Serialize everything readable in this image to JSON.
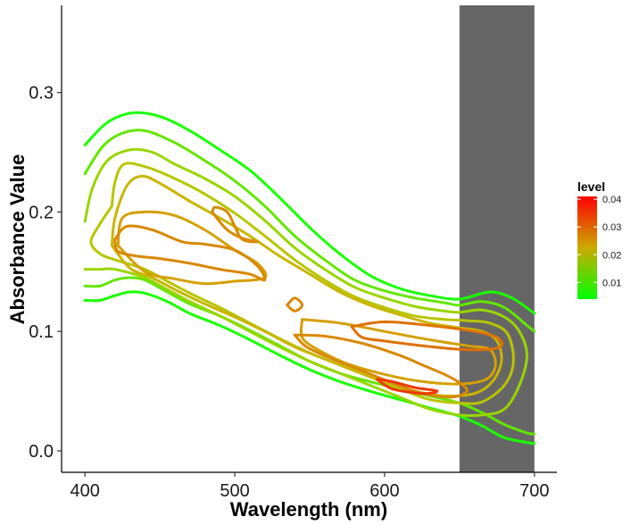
{
  "chart_data": {
    "type": "contour",
    "title": "",
    "xlabel": "Wavelength (nm)",
    "ylabel": "Absorbance Value",
    "xlim": [
      385,
      715
    ],
    "ylim": [
      -0.018,
      0.373
    ],
    "x_ticks": [
      400,
      500,
      600,
      700
    ],
    "x_tick_labels": [
      "400",
      "500",
      "600",
      "700"
    ],
    "y_ticks": [
      0.0,
      0.1,
      0.2,
      0.3
    ],
    "y_tick_labels": [
      "0.0",
      "0.1",
      "0.2",
      "0.3"
    ],
    "grid": false,
    "shaded_band": {
      "x_from": 650,
      "x_to": 700,
      "color": "#666666"
    },
    "legend": {
      "title": "level",
      "position": "right",
      "labels": [
        "0.04",
        "0.03",
        "0.02",
        "0.01"
      ],
      "values": [
        0.04,
        0.03,
        0.02,
        0.01
      ],
      "color_min": "#00ff00",
      "color_mid": "#ccaa00",
      "color_max": "#ff0000"
    },
    "contours": [
      {
        "level": 0.004,
        "color": "#1aff00",
        "points": [
          [
            400,
            0.256
          ],
          [
            415,
            0.275
          ],
          [
            432,
            0.283
          ],
          [
            450,
            0.28
          ],
          [
            470,
            0.268
          ],
          [
            490,
            0.252
          ],
          [
            510,
            0.235
          ],
          [
            530,
            0.212
          ],
          [
            550,
            0.187
          ],
          [
            570,
            0.165
          ],
          [
            590,
            0.147
          ],
          [
            610,
            0.136
          ],
          [
            630,
            0.13
          ],
          [
            650,
            0.127
          ],
          [
            670,
            0.133
          ],
          [
            685,
            0.128
          ],
          [
            700,
            0.115
          ]
        ]
      },
      {
        "level": 0.004,
        "color": "#1aff00",
        "points": [
          [
            400,
            0.126
          ],
          [
            410,
            0.126
          ],
          [
            420,
            0.13
          ],
          [
            430,
            0.133
          ],
          [
            440,
            0.132
          ],
          [
            455,
            0.125
          ],
          [
            470,
            0.115
          ],
          [
            490,
            0.105
          ],
          [
            510,
            0.093
          ],
          [
            530,
            0.08
          ],
          [
            550,
            0.068
          ],
          [
            570,
            0.058
          ],
          [
            590,
            0.05
          ],
          [
            610,
            0.043
          ],
          [
            630,
            0.036
          ],
          [
            650,
            0.029
          ],
          [
            665,
            0.021
          ],
          [
            680,
            0.011
          ],
          [
            700,
            0.006
          ]
        ]
      },
      {
        "level": 0.007,
        "color": "#63e600",
        "points": [
          [
            400,
            0.232
          ],
          [
            412,
            0.255
          ],
          [
            425,
            0.266
          ],
          [
            440,
            0.268
          ],
          [
            460,
            0.258
          ],
          [
            480,
            0.243
          ],
          [
            500,
            0.226
          ],
          [
            520,
            0.205
          ],
          [
            540,
            0.18
          ],
          [
            560,
            0.16
          ],
          [
            580,
            0.143
          ],
          [
            600,
            0.134
          ],
          [
            620,
            0.128
          ],
          [
            640,
            0.124
          ],
          [
            650,
            0.122
          ],
          [
            665,
            0.125
          ],
          [
            680,
            0.12
          ],
          [
            695,
            0.105
          ],
          [
            700,
            0.1
          ]
        ]
      },
      {
        "level": 0.007,
        "color": "#63e600",
        "points": [
          [
            400,
            0.138
          ],
          [
            410,
            0.138
          ],
          [
            420,
            0.143
          ],
          [
            430,
            0.145
          ],
          [
            440,
            0.143
          ],
          [
            455,
            0.133
          ],
          [
            470,
            0.123
          ],
          [
            490,
            0.113
          ],
          [
            510,
            0.101
          ],
          [
            530,
            0.088
          ],
          [
            550,
            0.075
          ],
          [
            570,
            0.065
          ],
          [
            590,
            0.058
          ],
          [
            610,
            0.052
          ],
          [
            630,
            0.046
          ],
          [
            650,
            0.04
          ],
          [
            665,
            0.032
          ],
          [
            680,
            0.022
          ],
          [
            695,
            0.015
          ],
          [
            700,
            0.014
          ]
        ]
      },
      {
        "level": 0.01,
        "color": "#99d500",
        "points": [
          [
            400,
            0.192
          ],
          [
            405,
            0.22
          ],
          [
            415,
            0.243
          ],
          [
            430,
            0.252
          ],
          [
            445,
            0.25
          ],
          [
            460,
            0.24
          ],
          [
            480,
            0.228
          ],
          [
            500,
            0.213
          ],
          [
            520,
            0.193
          ],
          [
            540,
            0.17
          ],
          [
            560,
            0.152
          ],
          [
            580,
            0.137
          ],
          [
            600,
            0.128
          ],
          [
            620,
            0.121
          ],
          [
            640,
            0.117
          ],
          [
            650,
            0.116
          ],
          [
            665,
            0.118
          ],
          [
            680,
            0.112
          ],
          [
            690,
            0.1
          ],
          [
            695,
            0.08
          ],
          [
            690,
            0.055
          ],
          [
            680,
            0.035
          ],
          [
            665,
            0.03
          ],
          [
            650,
            0.03
          ],
          [
            630,
            0.035
          ],
          [
            610,
            0.045
          ],
          [
            590,
            0.055
          ],
          [
            570,
            0.065
          ],
          [
            550,
            0.075
          ],
          [
            530,
            0.087
          ],
          [
            510,
            0.1
          ],
          [
            490,
            0.113
          ],
          [
            470,
            0.125
          ],
          [
            455,
            0.135
          ],
          [
            440,
            0.145
          ],
          [
            420,
            0.152
          ],
          [
            410,
            0.152
          ],
          [
            400,
            0.152
          ]
        ]
      },
      {
        "level": 0.014,
        "color": "#b8c500",
        "points": [
          [
            418,
            0.205
          ],
          [
            420,
            0.225
          ],
          [
            426,
            0.24
          ],
          [
            440,
            0.238
          ],
          [
            460,
            0.228
          ],
          [
            480,
            0.215
          ],
          [
            500,
            0.199
          ],
          [
            520,
            0.18
          ],
          [
            540,
            0.16
          ],
          [
            560,
            0.143
          ],
          [
            580,
            0.129
          ],
          [
            600,
            0.12
          ],
          [
            620,
            0.113
          ],
          [
            640,
            0.11
          ],
          [
            655,
            0.109
          ],
          [
            670,
            0.107
          ],
          [
            682,
            0.098
          ],
          [
            686,
            0.075
          ],
          [
            680,
            0.055
          ],
          [
            665,
            0.041
          ],
          [
            650,
            0.04
          ],
          [
            630,
            0.043
          ],
          [
            610,
            0.052
          ],
          [
            590,
            0.062
          ],
          [
            570,
            0.072
          ],
          [
            550,
            0.082
          ],
          [
            530,
            0.094
          ],
          [
            510,
            0.107
          ],
          [
            490,
            0.12
          ],
          [
            470,
            0.132
          ],
          [
            455,
            0.142
          ],
          [
            440,
            0.152
          ],
          [
            420,
            0.16
          ],
          [
            410,
            0.165
          ],
          [
            404,
            0.175
          ],
          [
            410,
            0.19
          ],
          [
            418,
            0.205
          ]
        ]
      },
      {
        "level": 0.018,
        "color": "#c9b500",
        "points": [
          [
            418,
            0.172
          ],
          [
            420,
            0.195
          ],
          [
            428,
            0.222
          ],
          [
            438,
            0.23
          ],
          [
            450,
            0.224
          ],
          [
            470,
            0.209
          ],
          [
            490,
            0.195
          ],
          [
            510,
            0.18
          ],
          [
            530,
            0.163
          ],
          [
            550,
            0.148
          ],
          [
            570,
            0.133
          ],
          [
            590,
            0.122
          ],
          [
            610,
            0.114
          ],
          [
            630,
            0.107
          ],
          [
            650,
            0.103
          ],
          [
            665,
            0.1
          ],
          [
            675,
            0.092
          ],
          [
            678,
            0.075
          ],
          [
            672,
            0.058
          ],
          [
            660,
            0.048
          ],
          [
            640,
            0.046
          ],
          [
            620,
            0.05
          ],
          [
            600,
            0.058
          ],
          [
            580,
            0.067
          ],
          [
            560,
            0.077
          ],
          [
            540,
            0.087
          ],
          [
            520,
            0.1
          ],
          [
            500,
            0.112
          ],
          [
            480,
            0.123
          ],
          [
            460,
            0.135
          ],
          [
            445,
            0.145
          ],
          [
            430,
            0.153
          ],
          [
            418,
            0.172
          ]
        ]
      },
      {
        "level": 0.022,
        "color": "#d4a000",
        "points": [
          [
            422,
            0.172
          ],
          [
            425,
            0.195
          ],
          [
            440,
            0.2
          ],
          [
            460,
            0.197
          ],
          [
            480,
            0.185
          ],
          [
            500,
            0.168
          ],
          [
            515,
            0.157
          ],
          [
            520,
            0.145
          ],
          [
            500,
            0.142
          ],
          [
            480,
            0.14
          ],
          [
            460,
            0.144
          ],
          [
            440,
            0.15
          ],
          [
            422,
            0.172
          ]
        ]
      },
      {
        "level": 0.022,
        "color": "#d4a000",
        "points": [
          [
            545,
            0.11
          ],
          [
            570,
            0.107
          ],
          [
            600,
            0.1
          ],
          [
            630,
            0.093
          ],
          [
            655,
            0.088
          ],
          [
            670,
            0.085
          ],
          [
            674,
            0.072
          ],
          [
            668,
            0.06
          ],
          [
            650,
            0.056
          ],
          [
            625,
            0.058
          ],
          [
            600,
            0.064
          ],
          [
            575,
            0.073
          ],
          [
            555,
            0.085
          ],
          [
            545,
            0.095
          ],
          [
            545,
            0.11
          ]
        ]
      },
      {
        "level": 0.026,
        "color": "#d98800",
        "points": [
          [
            420,
            0.177
          ],
          [
            428,
            0.188
          ],
          [
            445,
            0.185
          ],
          [
            465,
            0.175
          ],
          [
            480,
            0.173
          ],
          [
            500,
            0.168
          ],
          [
            515,
            0.155
          ],
          [
            520,
            0.143
          ],
          [
            510,
            0.148
          ],
          [
            490,
            0.152
          ],
          [
            470,
            0.157
          ],
          [
            450,
            0.161
          ],
          [
            435,
            0.163
          ],
          [
            422,
            0.167
          ],
          [
            420,
            0.177
          ]
        ]
      },
      {
        "level": 0.026,
        "color": "#d98800",
        "points": [
          [
            485,
            0.2
          ],
          [
            487,
            0.204
          ],
          [
            495,
            0.2
          ],
          [
            500,
            0.188
          ],
          [
            505,
            0.177
          ],
          [
            515,
            0.175
          ],
          [
            505,
            0.178
          ],
          [
            495,
            0.185
          ],
          [
            488,
            0.195
          ],
          [
            485,
            0.2
          ]
        ]
      },
      {
        "level": 0.026,
        "color": "#d98800",
        "points": [
          [
            535,
            0.122
          ],
          [
            540,
            0.128
          ],
          [
            545,
            0.122
          ],
          [
            540,
            0.117
          ],
          [
            535,
            0.122
          ]
        ]
      },
      {
        "level": 0.026,
        "color": "#d98800",
        "points": [
          [
            540,
            0.097
          ],
          [
            560,
            0.096
          ],
          [
            585,
            0.09
          ],
          [
            610,
            0.08
          ],
          [
            625,
            0.072
          ],
          [
            640,
            0.064
          ],
          [
            650,
            0.057
          ],
          [
            655,
            0.05
          ],
          [
            645,
            0.045
          ],
          [
            625,
            0.048
          ],
          [
            605,
            0.057
          ],
          [
            585,
            0.067
          ],
          [
            565,
            0.077
          ],
          [
            548,
            0.087
          ],
          [
            540,
            0.097
          ]
        ]
      },
      {
        "level": 0.03,
        "color": "#e07000",
        "points": [
          [
            578,
            0.104
          ],
          [
            600,
            0.108
          ],
          [
            630,
            0.105
          ],
          [
            660,
            0.1
          ],
          [
            675,
            0.095
          ],
          [
            678,
            0.088
          ],
          [
            670,
            0.085
          ],
          [
            650,
            0.085
          ],
          [
            625,
            0.088
          ],
          [
            600,
            0.092
          ],
          [
            585,
            0.095
          ],
          [
            578,
            0.104
          ]
        ]
      },
      {
        "level": 0.036,
        "color": "#ee3800",
        "points": [
          [
            595,
            0.06
          ],
          [
            605,
            0.058
          ],
          [
            620,
            0.053
          ],
          [
            635,
            0.05
          ],
          [
            625,
            0.048
          ],
          [
            605,
            0.052
          ],
          [
            595,
            0.06
          ]
        ]
      }
    ]
  }
}
